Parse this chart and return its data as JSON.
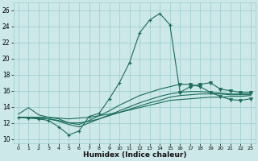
{
  "xlabel": "Humidex (Indice chaleur)",
  "bg_color": "#cce8e8",
  "grid_color": "#99cccc",
  "line_color": "#1a6b5a",
  "xlim": [
    -0.5,
    23.5
  ],
  "ylim": [
    9.5,
    27
  ],
  "yticks": [
    10,
    12,
    14,
    16,
    18,
    20,
    22,
    24,
    26
  ],
  "xticks": [
    0,
    1,
    2,
    3,
    4,
    5,
    6,
    7,
    8,
    9,
    10,
    11,
    12,
    13,
    14,
    15,
    16,
    17,
    18,
    19,
    20,
    21,
    22,
    23
  ],
  "line1_x": [
    0,
    1,
    2,
    3,
    4,
    5,
    6,
    7,
    8,
    9,
    10,
    11,
    12,
    13,
    14,
    15,
    16,
    17,
    18,
    19,
    20,
    21,
    22,
    23
  ],
  "line1_y": [
    12.7,
    12.6,
    12.5,
    12.3,
    11.5,
    10.5,
    11.0,
    12.8,
    13.2,
    15.0,
    17.0,
    19.5,
    23.2,
    24.8,
    25.6,
    24.2,
    15.8,
    16.5,
    16.8,
    17.0,
    16.2,
    16.0,
    15.8,
    15.8
  ],
  "line2_x": [
    0,
    1,
    2,
    3,
    4,
    5,
    6,
    7,
    8,
    9,
    10,
    11,
    12,
    13,
    14,
    15,
    16,
    17,
    18,
    19,
    20,
    21,
    22,
    23
  ],
  "line2_y": [
    12.7,
    12.7,
    12.7,
    12.7,
    12.6,
    12.5,
    12.6,
    12.7,
    12.9,
    13.1,
    13.3,
    13.6,
    13.9,
    14.2,
    14.5,
    14.8,
    14.9,
    15.0,
    15.1,
    15.2,
    15.2,
    15.3,
    15.3,
    15.4
  ],
  "line3_x": [
    0,
    1,
    2,
    3,
    4,
    5,
    6,
    7,
    8,
    9,
    10,
    11,
    12,
    13,
    14,
    15,
    16,
    17,
    18,
    19,
    20,
    21,
    22,
    23
  ],
  "line3_y": [
    12.7,
    12.7,
    12.6,
    12.5,
    12.3,
    12.0,
    12.0,
    12.2,
    12.5,
    12.9,
    13.3,
    13.7,
    14.1,
    14.5,
    14.8,
    15.2,
    15.4,
    15.5,
    15.6,
    15.6,
    15.6,
    15.5,
    15.5,
    15.5
  ],
  "line4_x": [
    0,
    1,
    2,
    3,
    4,
    5,
    6,
    7,
    8,
    9,
    10,
    11,
    12,
    13,
    14,
    15,
    16,
    17,
    18,
    19,
    20,
    21,
    22,
    23
  ],
  "line4_y": [
    12.7,
    12.7,
    12.6,
    12.5,
    12.2,
    11.8,
    11.5,
    12.0,
    12.5,
    13.0,
    13.5,
    14.0,
    14.5,
    14.9,
    15.3,
    15.6,
    15.8,
    15.9,
    15.9,
    15.8,
    15.7,
    15.6,
    15.6,
    15.6
  ],
  "line5_x": [
    0,
    1,
    2,
    3,
    4,
    5,
    6,
    7,
    8,
    9,
    10,
    11,
    12,
    13,
    14,
    15,
    16,
    17,
    18,
    19,
    20,
    21,
    22,
    23
  ],
  "line5_y": [
    13.1,
    13.9,
    13.0,
    12.7,
    12.5,
    12.0,
    11.8,
    12.3,
    12.9,
    13.5,
    14.2,
    14.8,
    15.4,
    15.8,
    16.2,
    16.5,
    16.8,
    16.8,
    16.5,
    15.8,
    15.3,
    14.9,
    14.8,
    15.0
  ]
}
